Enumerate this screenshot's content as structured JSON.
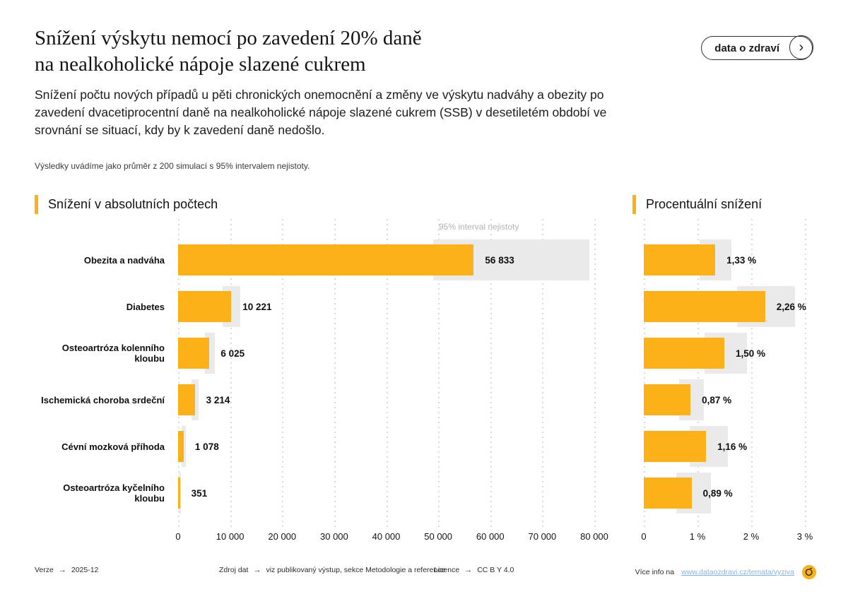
{
  "header": {
    "title_line1": "Snížení výskytu nemocí po zavedení 20% daně",
    "title_line2": "na nealkoholické nápoje slazené cukrem",
    "button_label": "data o zdraví",
    "button_chevron": "›"
  },
  "intro": {
    "subtitle": "Snížení počtu nových případů u pěti chronických onemocnění a změny ve výskytu nadváhy a obezity po zavedení dvacetiprocentní daně na nealkoholické nápoje slazené cukrem (SSB) v desetiletém období ve srovnání se situací, kdy by k zavedení daně nedošlo.",
    "note": "Výsledky uvádíme jako průměr z 200 simulací s 95% intervalem nejistoty."
  },
  "sections": {
    "left_title": "Snížení v absolutních počtech",
    "right_title": "Procentuální snížení",
    "interval_label": "95% interval nejistoty"
  },
  "chart_data": [
    {
      "type": "bar",
      "orientation": "horizontal",
      "title": "Snížení v absolutních počtech",
      "categories": [
        "Obezita a nadváha",
        "Diabetes",
        "Osteoartróza kolenního kloubu",
        "Ischemická choroba srdeční",
        "Cévní mozková příhoda",
        "Osteoartróza kyčelního kloubu"
      ],
      "values": [
        56833,
        10221,
        6025,
        3214,
        1078,
        351
      ],
      "value_labels": [
        "56 833",
        "10 221",
        "6 025",
        "3 214",
        "1 078",
        "351"
      ],
      "uncertainty_intervals": [
        [
          49000,
          79000
        ],
        [
          8600,
          11900
        ],
        [
          5100,
          7100
        ],
        [
          2600,
          3900
        ],
        [
          700,
          1500
        ],
        [
          200,
          500
        ]
      ],
      "interval_legend": "95% interval nejistoty",
      "xlim": [
        0,
        80000
      ],
      "x_ticks": [
        0,
        10000,
        20000,
        30000,
        40000,
        50000,
        60000,
        70000,
        80000
      ],
      "x_tick_labels": [
        "0",
        "10 000",
        "20 000",
        "30 000",
        "40 000",
        "50 000",
        "60 000",
        "70 000",
        "80 000"
      ],
      "grid": "dotted-vertical",
      "bar_color": "#FBB117",
      "interval_color": "#EAEAEA"
    },
    {
      "type": "bar",
      "orientation": "horizontal",
      "title": "Procentuální snížení",
      "categories": [
        "Obezita a nadváha",
        "Diabetes",
        "Osteoartróza kolenního kloubu",
        "Ischemická choroba srdeční",
        "Cévní mozková příhoda",
        "Osteoartróza kyčelního kloubu"
      ],
      "values": [
        1.33,
        2.26,
        1.5,
        0.87,
        1.16,
        0.89
      ],
      "value_labels": [
        "1,33 %",
        "2,26 %",
        "1,50 %",
        "0,87 %",
        "1,16 %",
        "0,89 %"
      ],
      "uncertainty_intervals": [
        [
          1.04,
          1.63
        ],
        [
          1.74,
          2.82
        ],
        [
          1.13,
          1.92
        ],
        [
          0.66,
          1.12
        ],
        [
          0.86,
          1.57
        ],
        [
          0.61,
          1.25
        ]
      ],
      "xlim": [
        0,
        3
      ],
      "x_ticks": [
        0,
        1,
        2,
        3
      ],
      "x_tick_labels": [
        "0",
        "1 %",
        "2 %",
        "3 %"
      ],
      "grid": "dotted-vertical",
      "bar_color": "#FBB117",
      "interval_color": "#EAEAEA"
    }
  ],
  "footer": {
    "arrow": "→",
    "version_label": "Verze",
    "version_value": "2025-12",
    "source_label": "Zdroj dat",
    "source_value": "viz publikovaný výstup, sekce Metodologie a reference",
    "license_label": "Licence",
    "license_value": "CC B Y 4.0",
    "info_label": "Více info na",
    "info_link": "www.dataozdravi.cz/temata/vyziva"
  },
  "colors": {
    "accent_yellow": "#FBB117",
    "interval_gray": "#EAEAEA",
    "gridline": "#D9D9D9",
    "link_blue": "#8FB0D6"
  }
}
